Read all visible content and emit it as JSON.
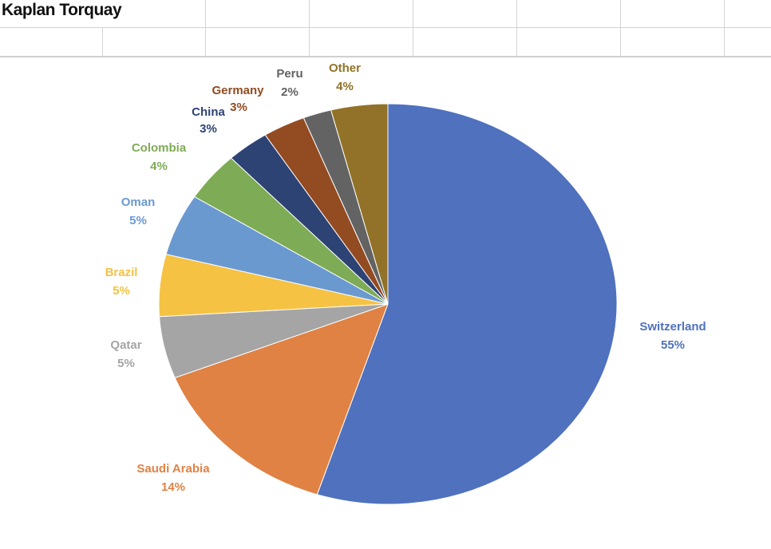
{
  "sheet": {
    "title": "Kaplan Torquay"
  },
  "chart_data": {
    "type": "pie",
    "title": "",
    "start_angle_deg": 0,
    "direction": "clockwise",
    "slices": [
      {
        "name": "Switzerland",
        "value": 55,
        "label": "55%",
        "color": "#4f71be"
      },
      {
        "name": "Saudi Arabia",
        "value": 14,
        "label": "14%",
        "color": "#df8244"
      },
      {
        "name": "Qatar",
        "value": 5,
        "label": "5%",
        "color": "#a5a5a5"
      },
      {
        "name": "Brazil",
        "value": 5,
        "label": "5%",
        "color": "#f5c243"
      },
      {
        "name": "Oman",
        "value": 5,
        "label": "5%",
        "color": "#6a99d0"
      },
      {
        "name": "Colombia",
        "value": 4,
        "label": "4%",
        "color": "#7eab55"
      },
      {
        "name": "China",
        "value": 3,
        "label": "3%",
        "color": "#2d4374"
      },
      {
        "name": "Germany",
        "value": 3,
        "label": "3%",
        "color": "#934b21"
      },
      {
        "name": "Peru",
        "value": 2,
        "label": "2%",
        "color": "#636363"
      },
      {
        "name": "Other",
        "value": 4,
        "label": "4%",
        "color": "#917228"
      }
    ],
    "label_colors": {
      "Switzerland": "#4f71be",
      "Saudi Arabia": "#df8244",
      "Qatar": "#a5a5a5",
      "Brazil": "#f5c243",
      "Oman": "#6a99d0",
      "Colombia": "#7eab55",
      "China": "#2d4374",
      "Germany": "#934b21",
      "Peru": "#636363",
      "Other": "#917228"
    },
    "legend": "none",
    "data_labels": "outside"
  }
}
